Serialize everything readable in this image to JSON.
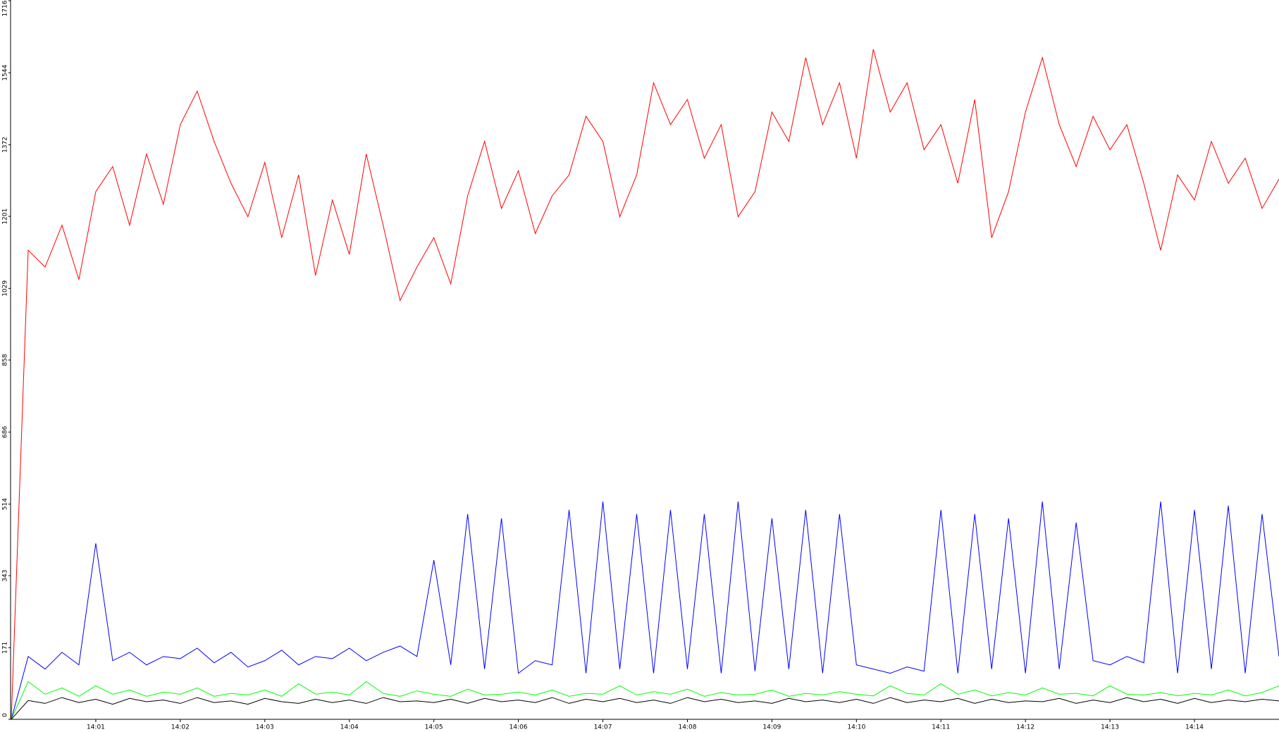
{
  "chart_data": {
    "type": "line",
    "x": [
      840.0,
      840.2,
      840.4,
      840.6,
      840.8,
      841.0,
      841.2,
      841.4,
      841.6,
      841.8,
      842.0,
      842.2,
      842.4,
      842.6,
      842.8,
      843.0,
      843.2,
      843.4,
      843.6,
      843.8,
      844.0,
      844.2,
      844.4,
      844.6,
      844.8,
      845.0,
      845.2,
      845.4,
      845.6,
      845.8,
      846.0,
      846.2,
      846.4,
      846.6,
      846.8,
      847.0,
      847.2,
      847.4,
      847.6,
      847.8,
      848.0,
      848.2,
      848.4,
      848.6,
      848.8,
      849.0,
      849.2,
      849.4,
      849.6,
      849.8,
      850.0,
      850.2,
      850.4,
      850.6,
      850.8,
      851.0,
      851.2,
      851.4,
      851.6,
      851.8,
      852.0,
      852.2,
      852.4,
      852.6,
      852.8,
      853.0,
      853.2,
      853.4,
      853.6,
      853.8,
      854.0,
      854.2,
      854.4,
      854.6,
      854.8,
      855.0
    ],
    "series": [
      {
        "color": "#ff0000",
        "values": [
          0,
          1120,
          1080,
          1180,
          1050,
          1260,
          1320,
          1180,
          1350,
          1230,
          1420,
          1500,
          1380,
          1280,
          1200,
          1330,
          1150,
          1300,
          1060,
          1240,
          1110,
          1350,
          1180,
          1000,
          1080,
          1150,
          1040,
          1250,
          1380,
          1220,
          1310,
          1160,
          1250,
          1300,
          1440,
          1380,
          1200,
          1300,
          1520,
          1420,
          1480,
          1340,
          1420,
          1200,
          1260,
          1450,
          1380,
          1580,
          1420,
          1520,
          1340,
          1600,
          1450,
          1520,
          1360,
          1420,
          1280,
          1480,
          1150,
          1260,
          1450,
          1580,
          1420,
          1320,
          1440,
          1360,
          1420,
          1280,
          1120,
          1300,
          1240,
          1380,
          1280,
          1340,
          1220,
          1290
        ]
      },
      {
        "color": "#0000ff",
        "values": [
          0,
          150,
          120,
          160,
          130,
          420,
          140,
          160,
          130,
          150,
          145,
          170,
          135,
          160,
          125,
          140,
          165,
          130,
          150,
          145,
          170,
          140,
          160,
          175,
          150,
          380,
          130,
          490,
          120,
          480,
          110,
          140,
          130,
          500,
          110,
          520,
          120,
          490,
          110,
          500,
          120,
          490,
          110,
          520,
          115,
          480,
          120,
          500,
          110,
          490,
          130,
          120,
          110,
          125,
          115,
          500,
          110,
          490,
          120,
          480,
          110,
          520,
          120,
          470,
          140,
          130,
          150,
          135,
          520,
          110,
          500,
          120,
          510,
          110,
          490,
          150
        ]
      },
      {
        "color": "#00ff00",
        "values": [
          0,
          90,
          60,
          75,
          55,
          80,
          60,
          70,
          55,
          65,
          60,
          75,
          55,
          62,
          58,
          70,
          55,
          85,
          60,
          65,
          58,
          90,
          62,
          55,
          68,
          60,
          55,
          72,
          58,
          60,
          65,
          58,
          70,
          55,
          62,
          60,
          80,
          58,
          66,
          60,
          72,
          55,
          64,
          58,
          60,
          70,
          55,
          62,
          58,
          66,
          60,
          56,
          80,
          62,
          58,
          85,
          60,
          70,
          56,
          64,
          58,
          75,
          60,
          62,
          56,
          80,
          60,
          58,
          64,
          56,
          62,
          58,
          70,
          56,
          64,
          80
        ]
      },
      {
        "color": "#000000",
        "values": [
          0,
          45,
          38,
          52,
          40,
          48,
          36,
          50,
          42,
          46,
          38,
          52,
          40,
          44,
          36,
          50,
          42,
          38,
          48,
          40,
          46,
          38,
          52,
          42,
          44,
          40,
          48,
          38,
          50,
          42,
          46,
          40,
          52,
          38,
          48,
          42,
          50,
          40,
          46,
          38,
          52,
          42,
          48,
          40,
          44,
          38,
          50,
          42,
          46,
          40,
          48,
          38,
          52,
          40,
          46,
          42,
          50,
          38,
          48,
          40,
          44,
          42,
          50,
          38,
          46,
          40,
          52,
          42,
          48,
          38,
          50,
          40,
          46,
          42,
          48,
          44
        ]
      }
    ],
    "xlim": [
      840,
      855
    ],
    "xticks": [
      {
        "value": 841,
        "label": "14:01"
      },
      {
        "value": 842,
        "label": "14:02"
      },
      {
        "value": 843,
        "label": "14:03"
      },
      {
        "value": 844,
        "label": "14:04"
      },
      {
        "value": 845,
        "label": "14:05"
      },
      {
        "value": 846,
        "label": "14:06"
      },
      {
        "value": 847,
        "label": "14:07"
      },
      {
        "value": 848,
        "label": "14:08"
      },
      {
        "value": 849,
        "label": "14:09"
      },
      {
        "value": 850,
        "label": "14:10"
      },
      {
        "value": 851,
        "label": "14:11"
      },
      {
        "value": 852,
        "label": "14:12"
      },
      {
        "value": 853,
        "label": "14:13"
      },
      {
        "value": 854,
        "label": "14:14"
      }
    ],
    "ylim": [
      0,
      1716
    ],
    "yticks": [
      0,
      171,
      343,
      514,
      686,
      858,
      1029,
      1201,
      1372,
      1544,
      1716
    ]
  }
}
